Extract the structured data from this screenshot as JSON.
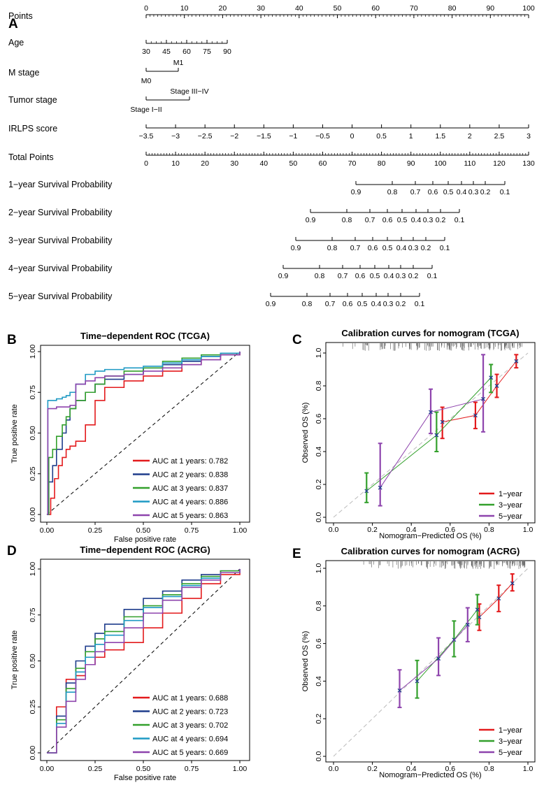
{
  "colors": {
    "red": "#e31a1c",
    "navy": "#1f3d8c",
    "green": "#33a02c",
    "cyan": "#1f9ac4",
    "purple": "#8e44ad",
    "ink": "#000000",
    "grid": "#bbbbbb"
  },
  "panels": {
    "A": "A",
    "B": "B",
    "C": "C",
    "D": "D",
    "E": "E"
  },
  "chart_data": [
    {
      "type": "nomogram",
      "panel": "A",
      "variables": [
        {
          "label": "Points",
          "kind": "scale",
          "ticks": [
            "0",
            "10",
            "20",
            "30",
            "40",
            "50",
            "60",
            "70",
            "80",
            "90",
            "100"
          ]
        },
        {
          "label": "Age",
          "kind": "scale",
          "ticks": [
            "30",
            "45",
            "60",
            "75",
            "90"
          ]
        },
        {
          "label": "M stage",
          "kind": "category",
          "ticks": [
            "M0",
            "M1"
          ]
        },
        {
          "label": "Tumor stage",
          "kind": "category",
          "ticks": [
            "Stage I−II",
            "Stage III−IV"
          ]
        },
        {
          "label": "IRLPS score",
          "kind": "scale",
          "ticks": [
            "−3.5",
            "−3",
            "−2.5",
            "−2",
            "−1.5",
            "−1",
            "−0.5",
            "0",
            "0.5",
            "1",
            "1.5",
            "2",
            "2.5",
            "3"
          ]
        },
        {
          "label": "Total Points",
          "kind": "scale",
          "ticks": [
            "0",
            "10",
            "20",
            "30",
            "40",
            "50",
            "60",
            "70",
            "80",
            "90",
            "100",
            "110",
            "120",
            "130"
          ]
        },
        {
          "label": "1−year Survival Probability",
          "kind": "prob",
          "ticks": [
            "0.9",
            "0.8",
            "0.7",
            "0.6",
            "0.5",
            "0.4",
            "0.3",
            "0.2",
            "0.1"
          ]
        },
        {
          "label": "2−year Survival Probability",
          "kind": "prob",
          "ticks": [
            "0.9",
            "0.8",
            "0.7",
            "0.6",
            "0.5",
            "0.4",
            "0.3",
            "0.2",
            "0.1"
          ]
        },
        {
          "label": "3−year Survival Probability",
          "kind": "prob",
          "ticks": [
            "0.9",
            "0.8",
            "0.7",
            "0.6",
            "0.5",
            "0.4",
            "0.3",
            "0.2",
            "0.1"
          ]
        },
        {
          "label": "4−year Survival Probability",
          "kind": "prob",
          "ticks": [
            "0.9",
            "0.8",
            "0.7",
            "0.6",
            "0.5",
            "0.4",
            "0.3",
            "0.2",
            "0.1"
          ]
        },
        {
          "label": "5−year Survival Probability",
          "kind": "prob",
          "ticks": [
            "0.9",
            "0.8",
            "0.7",
            "0.6",
            "0.5",
            "0.4",
            "0.3",
            "0.2",
            "0.1"
          ]
        }
      ]
    },
    {
      "type": "line",
      "panel": "B",
      "title": "Time−dependent ROC (TCGA)",
      "xlabel": "False positive rate",
      "ylabel": "True positive rate",
      "xlim": [
        0,
        1
      ],
      "ylim": [
        0,
        1
      ],
      "xticks": [
        "0.00",
        "0.25",
        "0.50",
        "0.75",
        "1.00"
      ],
      "yticks": [
        "0.00",
        "0.25",
        "0.50",
        "0.75",
        "1.00"
      ],
      "series": [
        {
          "name": "AUC at 1 years: 0.782",
          "color": "red",
          "x": [
            0,
            0.02,
            0.04,
            0.06,
            0.08,
            0.1,
            0.12,
            0.15,
            0.2,
            0.25,
            0.3,
            0.4,
            0.5,
            0.6,
            0.7,
            0.8,
            0.9,
            1.0
          ],
          "y": [
            0,
            0.1,
            0.22,
            0.3,
            0.35,
            0.4,
            0.42,
            0.45,
            0.55,
            0.7,
            0.78,
            0.82,
            0.85,
            0.88,
            0.92,
            0.95,
            0.98,
            1.0
          ]
        },
        {
          "name": "AUC at 2 years: 0.838",
          "color": "navy",
          "x": [
            0,
            0.01,
            0.03,
            0.05,
            0.08,
            0.1,
            0.12,
            0.15,
            0.2,
            0.25,
            0.3,
            0.4,
            0.5,
            0.6,
            0.7,
            0.8,
            0.9,
            1.0
          ],
          "y": [
            0,
            0.2,
            0.3,
            0.4,
            0.5,
            0.58,
            0.65,
            0.7,
            0.75,
            0.8,
            0.83,
            0.86,
            0.9,
            0.92,
            0.94,
            0.97,
            0.99,
            1.0
          ]
        },
        {
          "name": "AUC at 3 years: 0.837",
          "color": "green",
          "x": [
            0,
            0.01,
            0.03,
            0.05,
            0.08,
            0.1,
            0.12,
            0.15,
            0.2,
            0.25,
            0.3,
            0.4,
            0.5,
            0.6,
            0.7,
            0.8,
            0.9,
            1.0
          ],
          "y": [
            0,
            0.35,
            0.4,
            0.48,
            0.55,
            0.6,
            0.65,
            0.7,
            0.75,
            0.8,
            0.85,
            0.88,
            0.9,
            0.94,
            0.96,
            0.98,
            0.99,
            1.0
          ]
        },
        {
          "name": "AUC at 4 years: 0.886",
          "color": "cyan",
          "x": [
            0,
            0.005,
            0.02,
            0.05,
            0.08,
            0.1,
            0.12,
            0.15,
            0.2,
            0.25,
            0.3,
            0.4,
            0.5,
            0.6,
            0.7,
            0.8,
            0.9,
            1.0
          ],
          "y": [
            0,
            0.7,
            0.7,
            0.71,
            0.72,
            0.73,
            0.75,
            0.8,
            0.86,
            0.88,
            0.89,
            0.9,
            0.91,
            0.93,
            0.95,
            0.97,
            0.99,
            1.0
          ]
        },
        {
          "name": "AUC at 5 years: 0.863",
          "color": "purple",
          "x": [
            0,
            0.005,
            0.02,
            0.05,
            0.08,
            0.12,
            0.15,
            0.2,
            0.25,
            0.3,
            0.4,
            0.5,
            0.6,
            0.7,
            0.8,
            0.9,
            1.0
          ],
          "y": [
            0,
            0.65,
            0.65,
            0.66,
            0.66,
            0.67,
            0.8,
            0.82,
            0.84,
            0.85,
            0.86,
            0.88,
            0.9,
            0.92,
            0.95,
            0.98,
            1.0
          ]
        }
      ]
    },
    {
      "type": "scatter",
      "panel": "C",
      "title": "Calibration curves for nomogram (TCGA)",
      "xlabel": "Nomogram−Predicted OS (%)",
      "ylabel": "Observed OS (%)",
      "xlim": [
        0,
        1
      ],
      "ylim": [
        0,
        1
      ],
      "xticks": [
        "0.0",
        "0.2",
        "0.4",
        "0.6",
        "0.8",
        "1.0"
      ],
      "yticks": [
        "0.0",
        "0.2",
        "0.4",
        "0.6",
        "0.8",
        "1.0"
      ],
      "series": [
        {
          "name": "1−year",
          "color": "red",
          "x": [
            0.56,
            0.73,
            0.84,
            0.94
          ],
          "y": [
            0.58,
            0.62,
            0.8,
            0.95
          ],
          "lo": [
            0.48,
            0.54,
            0.73,
            0.91
          ],
          "hi": [
            0.67,
            0.7,
            0.87,
            0.99
          ]
        },
        {
          "name": "3−year",
          "color": "green",
          "x": [
            0.17,
            0.53,
            0.81
          ],
          "y": [
            0.16,
            0.5,
            0.85
          ],
          "lo": [
            0.09,
            0.4,
            0.76
          ],
          "hi": [
            0.27,
            0.64,
            0.93
          ]
        },
        {
          "name": "5−year",
          "color": "purple",
          "x": [
            0.24,
            0.5,
            0.77
          ],
          "y": [
            0.18,
            0.64,
            0.72
          ],
          "lo": [
            0.07,
            0.51,
            0.52
          ],
          "hi": [
            0.45,
            0.78,
            0.99
          ]
        }
      ]
    },
    {
      "type": "line",
      "panel": "D",
      "title": "Time−dependent ROC (ACRG)",
      "xlabel": "False positive rate",
      "ylabel": "True positive rate",
      "xlim": [
        0,
        1
      ],
      "ylim": [
        0,
        1
      ],
      "xticks": [
        "0.00",
        "0.25",
        "0.50",
        "0.75",
        "1.00"
      ],
      "yticks": [
        "0.00",
        "0.25",
        "0.50",
        "0.75",
        "1.00"
      ],
      "series": [
        {
          "name": "AUC at 1 years: 0.688",
          "color": "red",
          "x": [
            0,
            0.05,
            0.1,
            0.15,
            0.2,
            0.25,
            0.3,
            0.4,
            0.5,
            0.6,
            0.7,
            0.8,
            0.9,
            1.0
          ],
          "y": [
            0,
            0.25,
            0.4,
            0.42,
            0.48,
            0.52,
            0.56,
            0.6,
            0.68,
            0.76,
            0.84,
            0.92,
            0.97,
            1.0
          ]
        },
        {
          "name": "AUC at 2 years: 0.723",
          "color": "navy",
          "x": [
            0,
            0.05,
            0.1,
            0.15,
            0.2,
            0.25,
            0.3,
            0.4,
            0.5,
            0.6,
            0.7,
            0.8,
            0.9,
            1.0
          ],
          "y": [
            0,
            0.2,
            0.38,
            0.5,
            0.58,
            0.65,
            0.7,
            0.78,
            0.84,
            0.88,
            0.94,
            0.97,
            0.99,
            1.0
          ]
        },
        {
          "name": "AUC at 3 years: 0.702",
          "color": "green",
          "x": [
            0,
            0.05,
            0.1,
            0.15,
            0.2,
            0.25,
            0.3,
            0.4,
            0.5,
            0.6,
            0.7,
            0.8,
            0.9,
            1.0
          ],
          "y": [
            0,
            0.18,
            0.35,
            0.46,
            0.55,
            0.62,
            0.66,
            0.74,
            0.8,
            0.86,
            0.92,
            0.96,
            0.99,
            1.0
          ]
        },
        {
          "name": "AUC at 4 years: 0.694",
          "color": "cyan",
          "x": [
            0,
            0.05,
            0.1,
            0.15,
            0.2,
            0.25,
            0.3,
            0.4,
            0.5,
            0.6,
            0.7,
            0.8,
            0.9,
            1.0
          ],
          "y": [
            0,
            0.16,
            0.33,
            0.44,
            0.52,
            0.59,
            0.64,
            0.72,
            0.79,
            0.85,
            0.91,
            0.95,
            0.98,
            1.0
          ]
        },
        {
          "name": "AUC at 5 years: 0.669",
          "color": "purple",
          "x": [
            0,
            0.05,
            0.1,
            0.15,
            0.2,
            0.25,
            0.3,
            0.4,
            0.5,
            0.6,
            0.7,
            0.8,
            0.9,
            1.0
          ],
          "y": [
            0,
            0.14,
            0.28,
            0.4,
            0.48,
            0.55,
            0.6,
            0.68,
            0.76,
            0.83,
            0.9,
            0.94,
            0.98,
            1.0
          ]
        }
      ]
    },
    {
      "type": "scatter",
      "panel": "E",
      "title": "Calibration curves for nomogram (ACRG)",
      "xlabel": "Nomogram−Predicted OS (%)",
      "ylabel": "Observed OS (%)",
      "xlim": [
        0,
        1
      ],
      "ylim": [
        0,
        1
      ],
      "xticks": [
        "0.0",
        "0.2",
        "0.4",
        "0.6",
        "0.8",
        "1.0"
      ],
      "yticks": [
        "0.0",
        "0.2",
        "0.4",
        "0.6",
        "0.8",
        "1.0"
      ],
      "series": [
        {
          "name": "1−year",
          "color": "red",
          "x": [
            0.75,
            0.85,
            0.92
          ],
          "y": [
            0.74,
            0.84,
            0.92
          ],
          "lo": [
            0.67,
            0.77,
            0.88
          ],
          "hi": [
            0.81,
            0.91,
            0.97
          ]
        },
        {
          "name": "3−year",
          "color": "green",
          "x": [
            0.43,
            0.62,
            0.74
          ],
          "y": [
            0.4,
            0.62,
            0.78
          ],
          "lo": [
            0.31,
            0.53,
            0.7
          ],
          "hi": [
            0.51,
            0.72,
            0.86
          ]
        },
        {
          "name": "5−year",
          "color": "purple",
          "x": [
            0.34,
            0.54,
            0.69
          ],
          "y": [
            0.35,
            0.52,
            0.7
          ],
          "lo": [
            0.26,
            0.43,
            0.61
          ],
          "hi": [
            0.46,
            0.63,
            0.79
          ]
        }
      ]
    }
  ]
}
